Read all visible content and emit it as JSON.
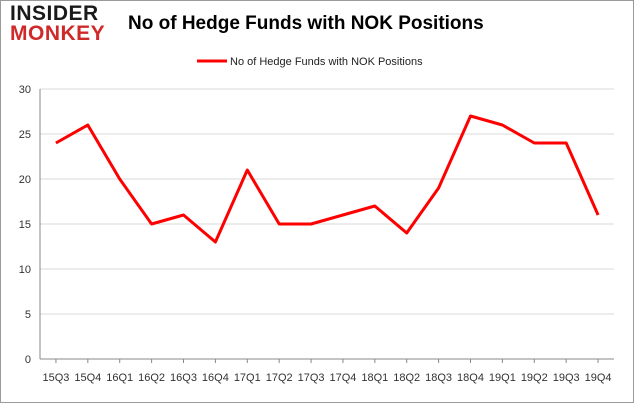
{
  "logo": {
    "line1": "INSIDER",
    "line2": "MONKEY"
  },
  "chart_data": {
    "type": "line",
    "title": "No of Hedge Funds with NOK Positions",
    "xlabel": "",
    "ylabel": "",
    "categories": [
      "15Q3",
      "15Q4",
      "16Q1",
      "16Q2",
      "16Q3",
      "16Q4",
      "17Q1",
      "17Q2",
      "17Q3",
      "17Q4",
      "18Q1",
      "18Q2",
      "18Q3",
      "18Q4",
      "19Q1",
      "19Q2",
      "19Q3",
      "19Q4"
    ],
    "series": [
      {
        "name": "No of Hedge Funds with NOK Positions",
        "values": [
          24,
          26,
          20,
          15,
          16,
          13,
          21,
          15,
          15,
          16,
          17,
          14,
          19,
          27,
          26,
          24,
          24,
          16
        ],
        "color": "#ff0000"
      }
    ],
    "ylim": [
      0,
      30
    ],
    "yticks": [
      0,
      5,
      10,
      15,
      20,
      25,
      30
    ],
    "grid": true,
    "legend": "top-center"
  }
}
